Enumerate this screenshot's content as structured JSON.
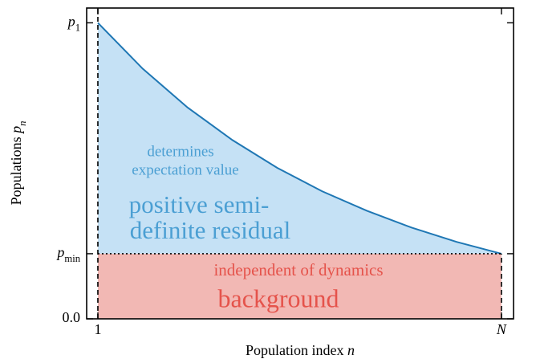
{
  "chart_data": {
    "type": "area",
    "xlabel": "Population index n",
    "ylabel": "Populations pn",
    "x": [
      1,
      2,
      3,
      4,
      5,
      6,
      7,
      8,
      9,
      10
    ],
    "series": [
      {
        "color": "#1f77b4",
        "fill": "#c5e1f5",
        "values": [
          1.0,
          0.845,
          0.714,
          0.604,
          0.51,
          0.431,
          0.365,
          0.308,
          0.26,
          0.22
        ]
      }
    ],
    "background_color": "#f2b8b4",
    "xlim": [
      0.75,
      10.27
    ],
    "ylim": [
      0,
      1.05
    ],
    "xticks": [
      1,
      {
        "value": 10,
        "label": "N"
      }
    ],
    "yticks": [
      {
        "value": 0,
        "label": "0.0"
      },
      {
        "value": 0.22,
        "label": "pmin"
      },
      {
        "value": 1.0,
        "label": "p1"
      }
    ],
    "annotations": [
      {
        "text": "determines",
        "color": "#4b9fd3"
      },
      {
        "text": "expectation value",
        "color": "#4b9fd3"
      },
      {
        "text": "positive semi-",
        "color": "#4b9fd3"
      },
      {
        "text": "definite residual",
        "color": "#4b9fd3"
      },
      {
        "text": "independent of dynamics",
        "color": "#e5534b"
      },
      {
        "text": "background",
        "color": "#e5534b"
      }
    ]
  }
}
